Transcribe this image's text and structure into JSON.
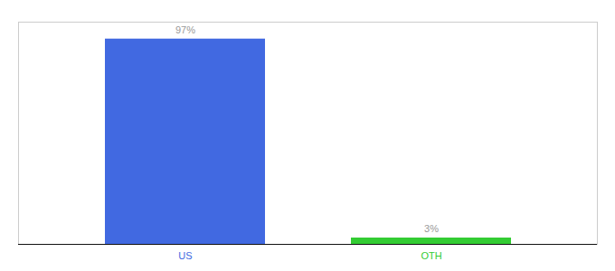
{
  "chart_data": {
    "type": "bar",
    "categories": [
      "US",
      "OTH"
    ],
    "values": [
      97,
      3
    ],
    "value_labels": [
      "97%",
      "3%"
    ],
    "data_labels": true,
    "colors": [
      "#4169e1",
      "#33cc33"
    ],
    "ylim": [
      0,
      105
    ],
    "tick_labels": "x",
    "grid": false
  }
}
